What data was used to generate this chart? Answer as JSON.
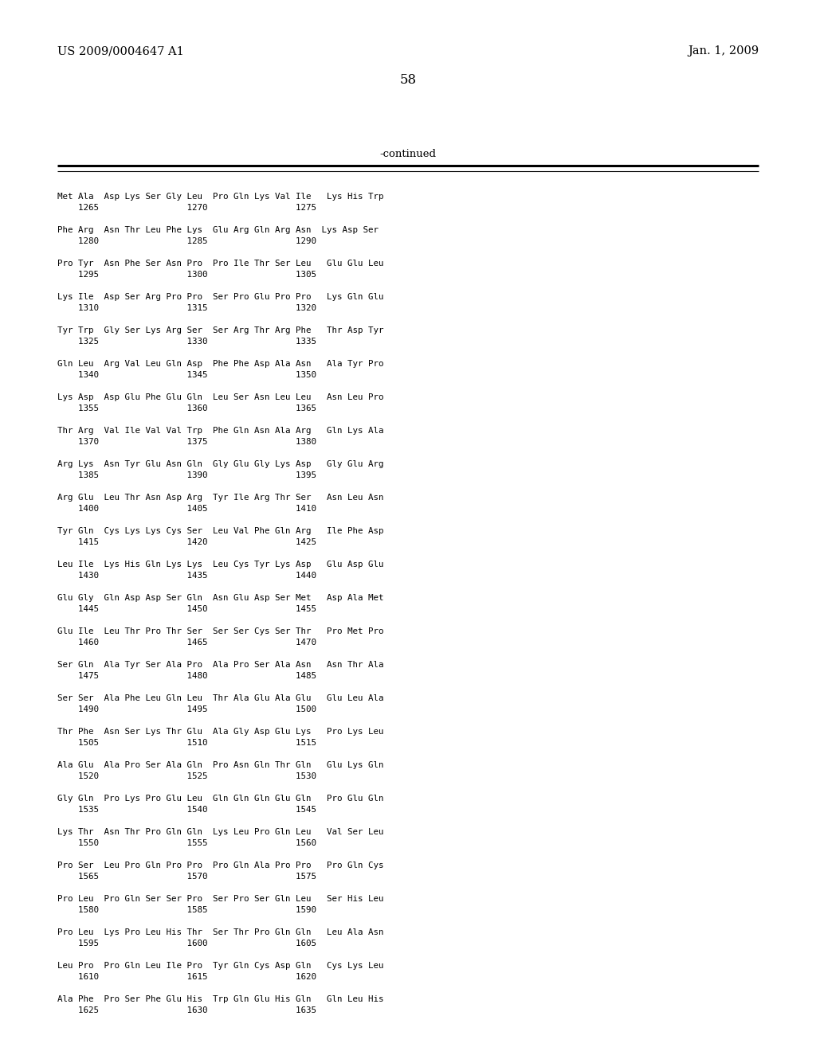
{
  "header_left": "US 2009/0004647 A1",
  "header_right": "Jan. 1, 2009",
  "page_number": "58",
  "continued_label": "-continued",
  "background_color": "#ffffff",
  "text_color": "#000000",
  "sequence_blocks": [
    [
      "Met Ala  Asp Lys Ser Gly Leu  Pro Gln Lys Val Ile   Lys His Trp",
      "    1265                 1270                 1275"
    ],
    [
      "Phe Arg  Asn Thr Leu Phe Lys  Glu Arg Gln Arg Asn  Lys Asp Ser",
      "    1280                 1285                 1290"
    ],
    [
      "Pro Tyr  Asn Phe Ser Asn Pro  Pro Ile Thr Ser Leu   Glu Glu Leu",
      "    1295                 1300                 1305"
    ],
    [
      "Lys Ile  Asp Ser Arg Pro Pro  Ser Pro Glu Pro Pro   Lys Gln Glu",
      "    1310                 1315                 1320"
    ],
    [
      "Tyr Trp  Gly Ser Lys Arg Ser  Ser Arg Thr Arg Phe   Thr Asp Tyr",
      "    1325                 1330                 1335"
    ],
    [
      "Gln Leu  Arg Val Leu Gln Asp  Phe Phe Asp Ala Asn   Ala Tyr Pro",
      "    1340                 1345                 1350"
    ],
    [
      "Lys Asp  Asp Glu Phe Glu Gln  Leu Ser Asn Leu Leu   Asn Leu Pro",
      "    1355                 1360                 1365"
    ],
    [
      "Thr Arg  Val Ile Val Val Trp  Phe Gln Asn Ala Arg   Gln Lys Ala",
      "    1370                 1375                 1380"
    ],
    [
      "Arg Lys  Asn Tyr Glu Asn Gln  Gly Glu Gly Lys Asp   Gly Glu Arg",
      "    1385                 1390                 1395"
    ],
    [
      "Arg Glu  Leu Thr Asn Asp Arg  Tyr Ile Arg Thr Ser   Asn Leu Asn",
      "    1400                 1405                 1410"
    ],
    [
      "Tyr Gln  Cys Lys Lys Cys Ser  Leu Val Phe Gln Arg   Ile Phe Asp",
      "    1415                 1420                 1425"
    ],
    [
      "Leu Ile  Lys His Gln Lys Lys  Leu Cys Tyr Lys Asp   Glu Asp Glu",
      "    1430                 1435                 1440"
    ],
    [
      "Glu Gly  Gln Asp Asp Ser Gln  Asn Glu Asp Ser Met   Asp Ala Met",
      "    1445                 1450                 1455"
    ],
    [
      "Glu Ile  Leu Thr Pro Thr Ser  Ser Ser Cys Ser Thr   Pro Met Pro",
      "    1460                 1465                 1470"
    ],
    [
      "Ser Gln  Ala Tyr Ser Ala Pro  Ala Pro Ser Ala Asn   Asn Thr Ala",
      "    1475                 1480                 1485"
    ],
    [
      "Ser Ser  Ala Phe Leu Gln Leu  Thr Ala Glu Ala Glu   Glu Leu Ala",
      "    1490                 1495                 1500"
    ],
    [
      "Thr Phe  Asn Ser Lys Thr Glu  Ala Gly Asp Glu Lys   Pro Lys Leu",
      "    1505                 1510                 1515"
    ],
    [
      "Ala Glu  Ala Pro Ser Ala Gln  Pro Asn Gln Thr Gln   Glu Lys Gln",
      "    1520                 1525                 1530"
    ],
    [
      "Gly Gln  Pro Lys Pro Glu Leu  Gln Gln Gln Glu Gln   Pro Glu Gln",
      "    1535                 1540                 1545"
    ],
    [
      "Lys Thr  Asn Thr Pro Gln Gln  Lys Leu Pro Gln Leu   Val Ser Leu",
      "    1550                 1555                 1560"
    ],
    [
      "Pro Ser  Leu Pro Gln Pro Pro  Pro Gln Ala Pro Pro   Pro Gln Cys",
      "    1565                 1570                 1575"
    ],
    [
      "Pro Leu  Pro Gln Ser Ser Pro  Ser Pro Ser Gln Leu   Ser His Leu",
      "    1580                 1585                 1590"
    ],
    [
      "Pro Leu  Lys Pro Leu His Thr  Ser Thr Pro Gln Gln   Leu Ala Asn",
      "    1595                 1600                 1605"
    ],
    [
      "Leu Pro  Pro Gln Leu Ile Pro  Tyr Gln Cys Asp Gln   Cys Lys Leu",
      "    1610                 1615                 1620"
    ],
    [
      "Ala Phe  Pro Ser Phe Glu His  Trp Gln Glu His Gln   Gln Leu His",
      "    1625                 1630                 1635"
    ]
  ]
}
